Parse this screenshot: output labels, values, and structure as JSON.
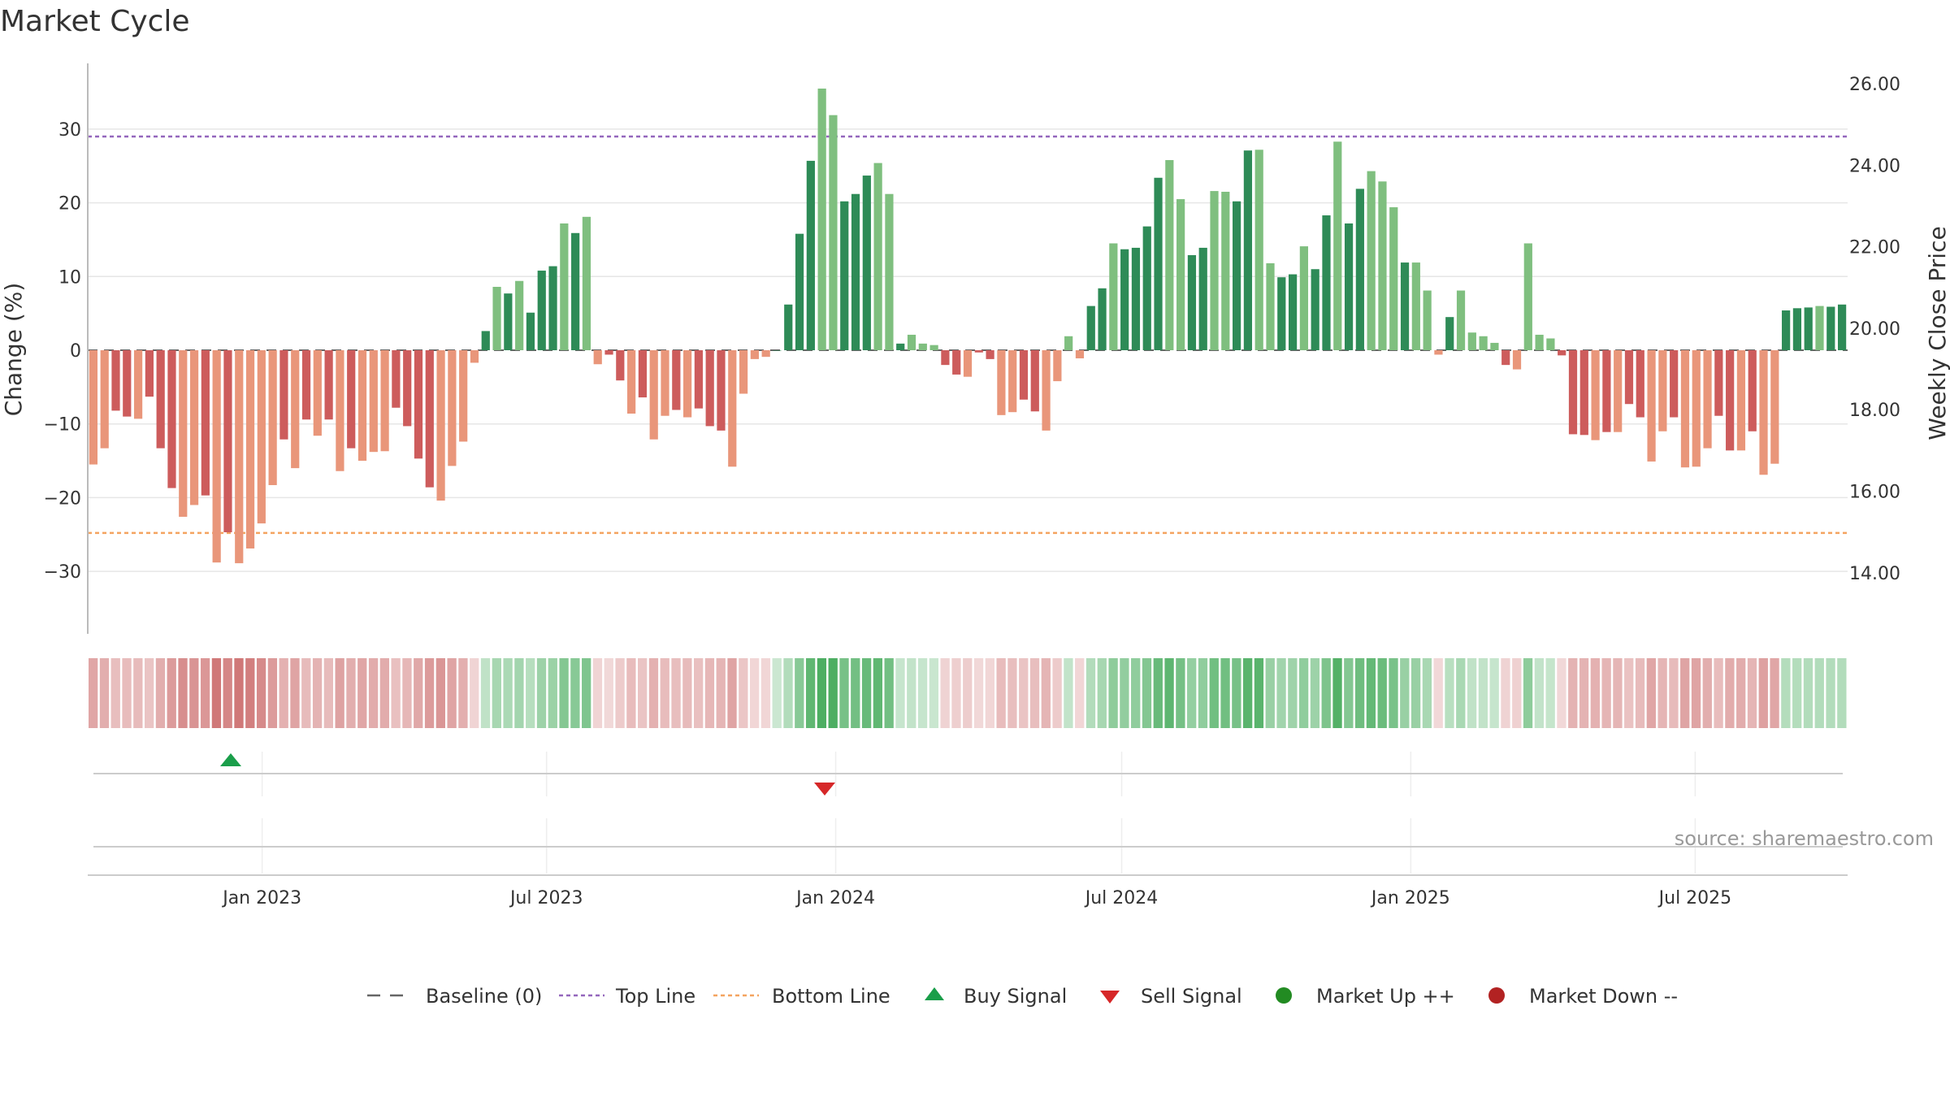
{
  "title": "Market Cycle",
  "source": "source: sharemaestro.com",
  "colors": {
    "up_strong": "#2e8b57",
    "up_light": "#7fbf7f",
    "down_strong": "#cd5c5c",
    "down_light": "#e9967a",
    "top_line": "#9467bd",
    "bottom_line": "#f4a460",
    "buy": "#1a9e4a",
    "sell": "#d62728",
    "market_up": "#228b22",
    "market_down": "#b22222"
  },
  "chart_data": {
    "type": "bar",
    "ylabel": "Change (%)",
    "y2label": "Weekly Close Price",
    "ylim": [
      -39,
      39
    ],
    "y2lim": [
      12.5,
      26.5
    ],
    "yticks": [
      30,
      20,
      10,
      0,
      -10,
      -20,
      -30
    ],
    "ytick_labels": [
      "30",
      "20",
      "10",
      "0",
      "−10",
      "−20",
      "−30"
    ],
    "y2ticks": [
      "26.00",
      "24.00",
      "22.00",
      "20.00",
      "18.00",
      "16.00",
      "14.00"
    ],
    "top_line": 29,
    "bottom_line": -24.8,
    "x_start": "2022-09-12",
    "x_end": "2025-10-06",
    "xticks": [
      "Jan 2023",
      "Jul 2023",
      "Jan 2024",
      "Jul 2024",
      "Jan 2025",
      "Jul 2025"
    ],
    "values": [
      -15.5,
      -13.3,
      -8.2,
      -9.0,
      -9.3,
      -6.3,
      -13.3,
      -18.7,
      -22.6,
      -21.0,
      -19.7,
      -28.8,
      -24.7,
      -28.9,
      -26.9,
      -23.5,
      -18.3,
      -12.1,
      -16.0,
      -9.4,
      -11.6,
      -9.4,
      -16.4,
      -13.3,
      -15.0,
      -13.8,
      -13.7,
      -7.8,
      -10.3,
      -14.7,
      -18.6,
      -20.4,
      -15.7,
      -12.4,
      -1.7,
      2.6,
      8.6,
      7.7,
      9.4,
      5.1,
      10.8,
      11.4,
      17.2,
      15.9,
      18.1,
      -1.9,
      -0.6,
      -4.1,
      -8.6,
      -6.4,
      -12.1,
      -8.9,
      -8.1,
      -9.1,
      -7.9,
      -10.3,
      -10.9,
      -15.8,
      -5.9,
      -1.2,
      -0.9,
      0,
      6.2,
      15.8,
      25.7,
      35.5,
      31.9,
      20.2,
      21.2,
      23.7,
      25.4,
      21.2,
      0.9,
      2.1,
      0.9,
      0.7,
      -2.0,
      -3.3,
      -3.6,
      -0.3,
      -1.2,
      -8.8,
      -8.4,
      -6.7,
      -8.3,
      -10.9,
      -4.2,
      1.9,
      -1.1,
      6.0,
      8.4,
      14.5,
      13.7,
      13.9,
      16.8,
      23.4,
      25.8,
      20.5,
      12.9,
      13.9,
      21.6,
      21.5,
      20.2,
      27.1,
      27.2,
      11.8,
      9.9,
      10.3,
      14.1,
      11.0,
      18.3,
      28.3,
      17.2,
      21.9,
      24.3,
      22.9,
      19.4,
      11.9,
      11.9,
      8.1,
      -0.6,
      4.5,
      8.1,
      2.4,
      1.9,
      1.0,
      -2.0,
      -2.6,
      14.5,
      2.1,
      1.6,
      -0.7,
      -11.4,
      -11.5,
      -12.2,
      -11.1,
      -11.1,
      -7.3,
      -9.1,
      -15.1,
      -11.0,
      -9.1,
      -15.9,
      -15.8,
      -13.3,
      -8.9,
      -13.6,
      -13.6,
      -11.0,
      -16.9,
      -15.4,
      5.4,
      5.7,
      5.8,
      6.0,
      5.9,
      6.2
    ],
    "buy_signals": [
      "2022-12-12"
    ],
    "sell_signals": [
      "2023-12-25"
    ],
    "market_up": [],
    "market_down": []
  },
  "legend": [
    {
      "key": "baseline",
      "label": "Baseline (0)"
    },
    {
      "key": "top",
      "label": "Top Line"
    },
    {
      "key": "bottom",
      "label": "Bottom Line"
    },
    {
      "key": "buy",
      "label": "Buy Signal"
    },
    {
      "key": "sell",
      "label": "Sell Signal"
    },
    {
      "key": "mup",
      "label": "Market Up ++"
    },
    {
      "key": "mdown",
      "label": "Market Down --"
    }
  ]
}
